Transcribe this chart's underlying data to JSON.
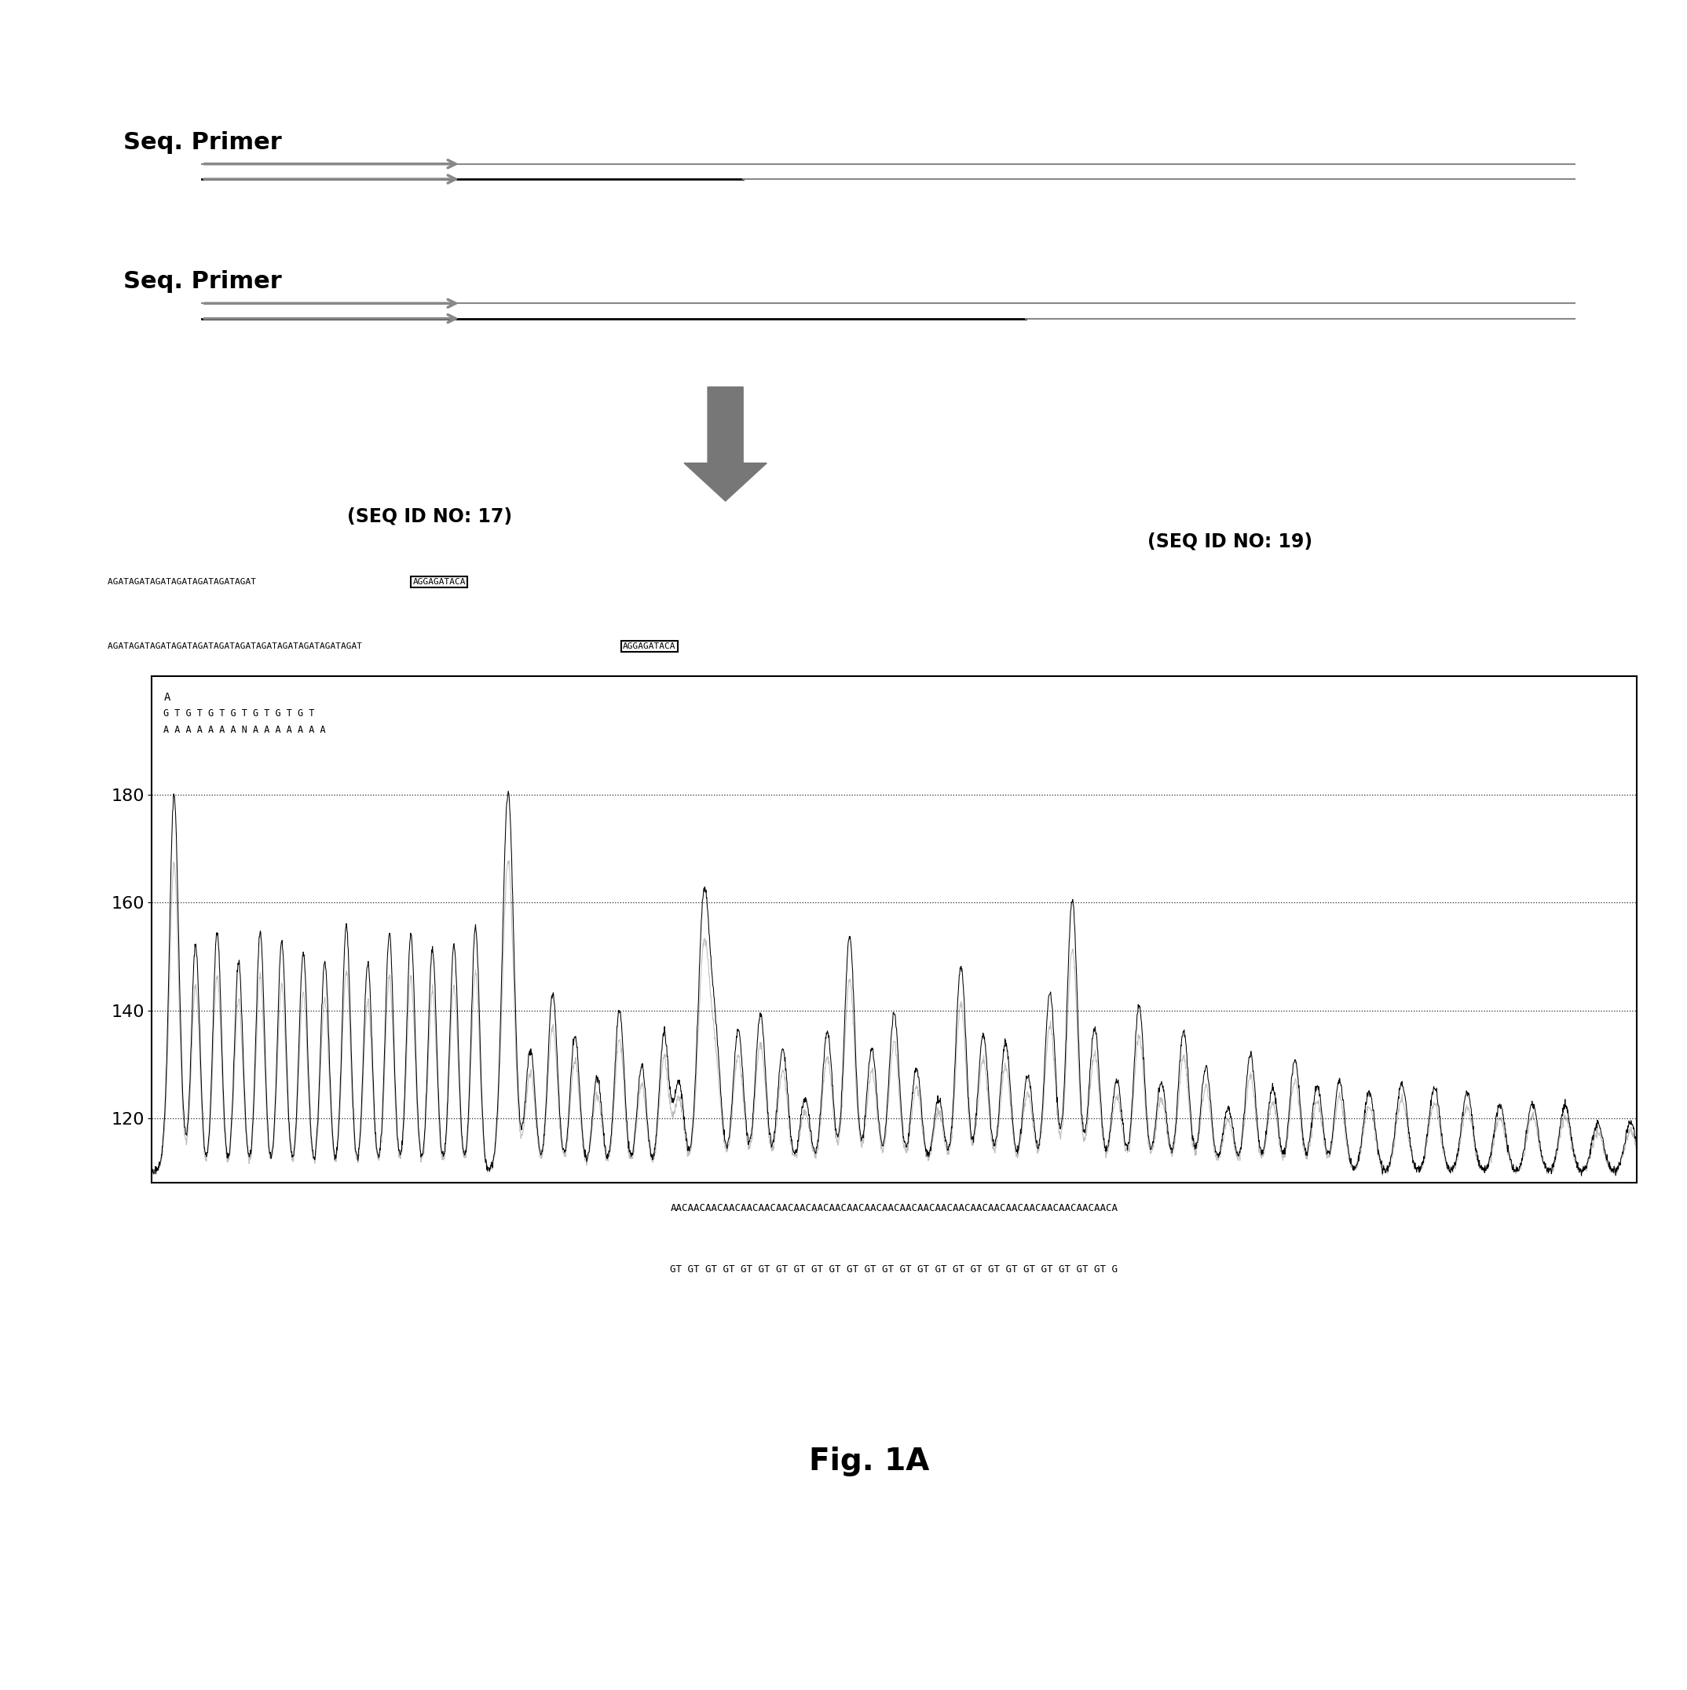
{
  "fig_label": "Fig. 1A",
  "seq_primer_label": "Seq. Primer",
  "seq_id_17": "(SEQ ID NO: 17)",
  "seq_id_19": "(SEQ ID NO: 19)",
  "seq_line1_prefix": "AGATAGATAGATAGATAGATAGATAGAT ",
  "seq_boxed1": "AGGAGATACA",
  "seq_line2_prefix": "AGATAGATAGATAGATAGATAGATAGATAGATAGATAGATAGATAGAT ",
  "seq_boxed2": "AGGAGATACA",
  "chart_seq_A": "A",
  "chart_seq_row1": "G T G T G T G T G T G T G T",
  "chart_seq_row2": "A A A A A A A N A A A A A A A",
  "chart_bottom_seq1": "AACAACAACAACAACAACAACAACAACAACAACAACAACAACAACAACAACAACAACAACAACAACAACAACAACA",
  "chart_bottom_seq2": "GT GT GT GT GT GT GT GT GT GT GT GT GT GT GT GT GT GT GT GT GT GT GT GT GT G",
  "ytick_values": [
    120,
    140,
    160,
    180
  ],
  "ymin": 108,
  "ymax": 202,
  "background_color": "#ffffff",
  "primer_color": "#888888",
  "big_arrow_color": "#777777",
  "peak_black": "#000000",
  "peak_gray": "#aaaaaa"
}
